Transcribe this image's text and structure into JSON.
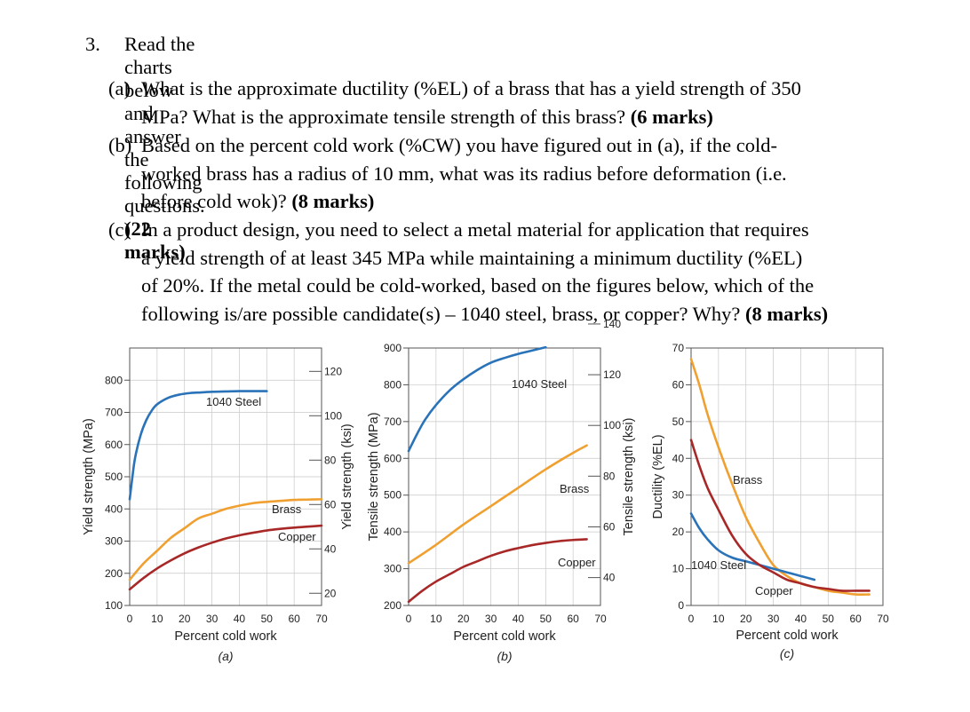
{
  "question": {
    "number": "3.",
    "intro": "Read the charts below and answer the following questions.",
    "intro_marks": "(22 marks)",
    "parts": [
      {
        "label": "(a)",
        "lines": [
          "What is the approximate ductility (%EL) of a brass that has a yield strength of 350",
          "MPa? What is the approximate tensile strength of this brass?"
        ],
        "marks": "(6 marks)"
      },
      {
        "label": "(b)",
        "lines": [
          "Based on the percent cold work (%CW) you have figured out in (a), if the cold-",
          "worked brass has a radius of 10 mm, what was its radius before deformation (i.e.",
          "before cold wok)?"
        ],
        "marks": "(8 marks)"
      },
      {
        "label": "(c)",
        "lines": [
          "In a product design, you need to select a metal material for application that requires",
          "a yield strength of at least 345 MPa while maintaining a minimum ductility (%EL)",
          "of 20%. If the metal could be cold-worked, based on the figures below, which of the",
          "following is/are possible candidate(s) – 1040 steel, brass, or copper? Why?"
        ],
        "marks": "(8 marks)"
      }
    ]
  },
  "colors": {
    "steel": "#2a73b8",
    "brass": "#f0a030",
    "copper": "#a82828",
    "grid": "#c8c8c8"
  },
  "chart_data": [
    {
      "type": "line",
      "panel_label": "(a)",
      "xlabel": "Percent cold work",
      "ylabel_left": "Yield strength (MPa)",
      "ylabel_right": "Yield strength (ksi)",
      "xlim": [
        0,
        70
      ],
      "ylim_left": [
        100,
        900
      ],
      "ylim_right_ksi": [
        0,
        140
      ],
      "x_ticks": [
        0,
        10,
        20,
        30,
        40,
        50,
        60,
        70
      ],
      "y_ticks_left": [
        100,
        200,
        300,
        400,
        500,
        600,
        700,
        800
      ],
      "y_ticks_right": [
        20,
        40,
        60,
        80,
        100,
        120
      ],
      "series": [
        {
          "name": "1040 Steel",
          "x": [
            0,
            1,
            2,
            4,
            6,
            8,
            10,
            14,
            18,
            22,
            26,
            30,
            35,
            40,
            45,
            50
          ],
          "y": [
            430,
            500,
            560,
            630,
            675,
            705,
            725,
            745,
            755,
            760,
            762,
            764,
            765,
            766,
            766,
            766
          ]
        },
        {
          "name": "Brass",
          "x": [
            0,
            5,
            10,
            15,
            20,
            25,
            30,
            35,
            40,
            45,
            50,
            55,
            60,
            65,
            70
          ],
          "y": [
            180,
            230,
            270,
            310,
            340,
            370,
            385,
            400,
            410,
            418,
            422,
            425,
            428,
            429,
            430
          ]
        },
        {
          "name": "Copper",
          "x": [
            0,
            5,
            10,
            15,
            20,
            25,
            30,
            35,
            40,
            45,
            50,
            55,
            60,
            65,
            70
          ],
          "y": [
            150,
            185,
            215,
            240,
            262,
            280,
            295,
            308,
            318,
            326,
            333,
            338,
            342,
            345,
            348
          ]
        }
      ]
    },
    {
      "type": "line",
      "panel_label": "(b)",
      "xlabel": "Percent cold work",
      "ylabel_left": "Tensile strength (MPa)",
      "ylabel_right": "Tensile strength (ksi)",
      "xlim": [
        0,
        70
      ],
      "ylim_left": [
        200,
        900
      ],
      "ylim_right_ksi": [
        30,
        140
      ],
      "x_ticks": [
        0,
        10,
        20,
        30,
        40,
        50,
        60,
        70
      ],
      "y_ticks_left": [
        200,
        300,
        400,
        500,
        600,
        700,
        800,
        900
      ],
      "y_ticks_right": [
        40,
        60,
        80,
        100,
        120,
        140
      ],
      "series": [
        {
          "name": "1040 Steel",
          "x": [
            0,
            3,
            6,
            10,
            15,
            20,
            25,
            30,
            35,
            40,
            45,
            50
          ],
          "y": [
            620,
            665,
            705,
            745,
            785,
            815,
            840,
            860,
            873,
            884,
            893,
            902
          ]
        },
        {
          "name": "Brass",
          "x": [
            0,
            10,
            20,
            30,
            40,
            50,
            60,
            65
          ],
          "y": [
            315,
            365,
            420,
            470,
            520,
            570,
            615,
            635
          ]
        },
        {
          "name": "Copper",
          "x": [
            0,
            5,
            10,
            15,
            20,
            25,
            30,
            35,
            40,
            45,
            50,
            55,
            60,
            65
          ],
          "y": [
            210,
            240,
            265,
            285,
            305,
            320,
            335,
            347,
            356,
            364,
            370,
            375,
            378,
            380
          ]
        }
      ]
    },
    {
      "type": "line",
      "panel_label": "(c)",
      "xlabel": "Percent cold work",
      "ylabel": "Ductility (%EL)",
      "xlim": [
        0,
        70
      ],
      "ylim": [
        0,
        70
      ],
      "x_ticks": [
        0,
        10,
        20,
        30,
        40,
        50,
        60,
        70
      ],
      "y_ticks": [
        0,
        10,
        20,
        30,
        40,
        50,
        60,
        70
      ],
      "series": [
        {
          "name": "Brass",
          "x": [
            0,
            3,
            6,
            10,
            15,
            20,
            25,
            30,
            35,
            40,
            45,
            50,
            55,
            60,
            65
          ],
          "y": [
            67,
            60,
            52,
            43,
            33,
            24,
            17,
            11,
            8,
            6,
            5,
            4,
            3.5,
            3,
            3
          ]
        },
        {
          "name": "1040 Steel",
          "x": [
            0,
            3,
            6,
            10,
            15,
            20,
            25,
            30,
            35,
            40,
            45
          ],
          "y": [
            25,
            21,
            18,
            15,
            13,
            12,
            11,
            10,
            9,
            8,
            7
          ]
        },
        {
          "name": "Copper",
          "x": [
            0,
            3,
            6,
            10,
            15,
            20,
            25,
            30,
            35,
            40,
            45,
            50,
            55,
            60,
            65
          ],
          "y": [
            45,
            38,
            32,
            26,
            19,
            14,
            11,
            9,
            7,
            6,
            5,
            4.5,
            4,
            4,
            4
          ]
        }
      ]
    }
  ]
}
